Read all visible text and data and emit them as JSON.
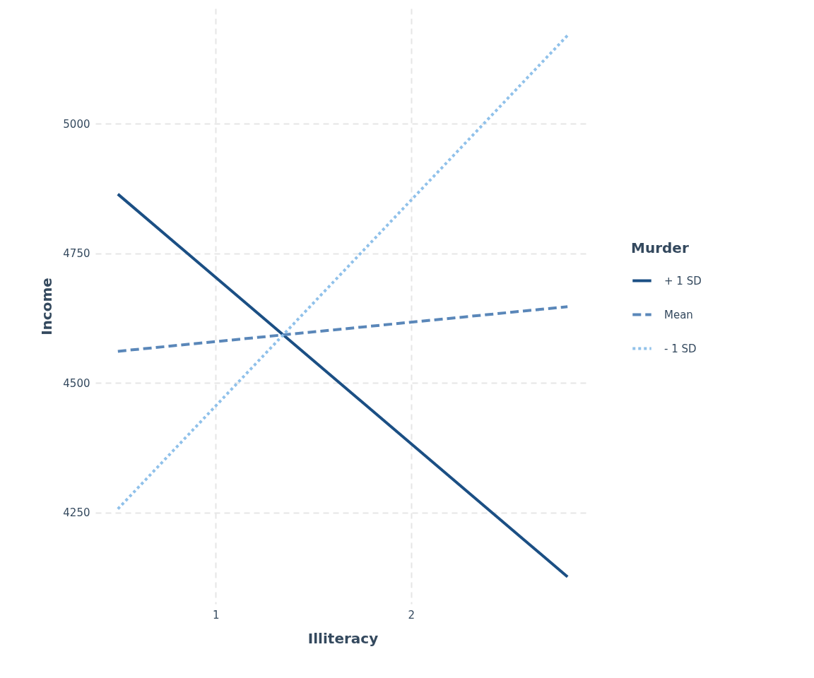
{
  "chart_data": {
    "type": "line",
    "xlabel": "Illiteracy",
    "ylabel": "Income",
    "legend_title": "Murder",
    "legend": "right",
    "grid": true,
    "x": [
      0.5,
      2.8
    ],
    "xlim": [
      0.385,
      2.915
    ],
    "xticks": [
      1,
      2
    ],
    "ylim": [
      4074,
      5222
    ],
    "yticks": [
      4250,
      4500,
      4750,
      5000
    ],
    "series": [
      {
        "name": "+ 1 SD",
        "color": "#1b4f84",
        "line_style": "solid",
        "values": [
          4864,
          4126
        ]
      },
      {
        "name": "Mean",
        "color": "#5a87b9",
        "line_style": "dashed",
        "values": [
          4561,
          4647
        ]
      },
      {
        "name": "- 1 SD",
        "color": "#90c1ea",
        "line_style": "dotted",
        "values": [
          4257,
          5170
        ]
      }
    ]
  }
}
